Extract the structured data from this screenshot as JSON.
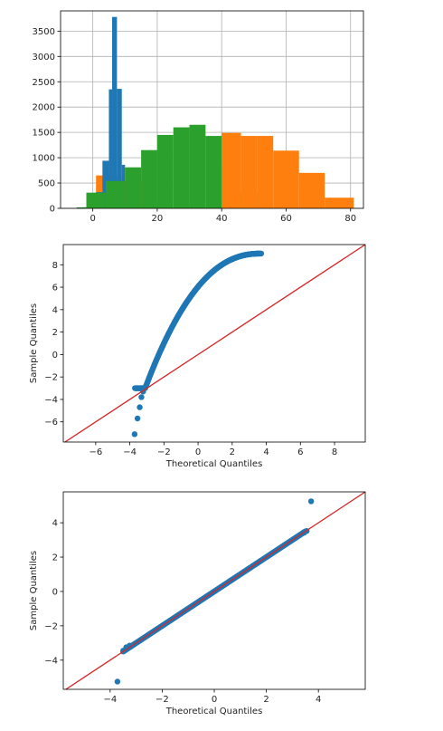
{
  "chart_data": [
    {
      "type": "bar",
      "title": "",
      "xlabel": "",
      "ylabel": "",
      "xlim": [
        -10,
        84
      ],
      "ylim": [
        0,
        3900
      ],
      "grid": true,
      "xticks": [
        0,
        20,
        40,
        60,
        80
      ],
      "yticks": [
        0,
        500,
        1000,
        1500,
        2000,
        2500,
        3000,
        3500
      ],
      "series": [
        {
          "color": "#ff7f0e",
          "bins": [
            {
              "x0": 0,
              "x1": 1,
              "y": 0
            },
            {
              "x0": 1,
              "x2": 0,
              "x1": 9,
              "y": 650
            },
            {
              "x0": 9,
              "x1": 17,
              "y": 550
            },
            {
              "x0": 17,
              "x1": 25,
              "y": 0
            }
          ]
        },
        {
          "color": "#1f77b4",
          "bins": [
            {
              "x0": -3,
              "x1": -1,
              "y": 20
            },
            {
              "x0": -1,
              "x1": 1,
              "y": 50
            },
            {
              "x0": 1,
              "x1": 3,
              "y": 320
            },
            {
              "x0": 3,
              "x1": 5,
              "y": 940
            },
            {
              "x0": 5,
              "x1": 6,
              "y": 2350
            },
            {
              "x0": 6,
              "x1": 7.5,
              "y": 3780
            },
            {
              "x0": 7.5,
              "x1": 9,
              "y": 2360
            },
            {
              "x0": 9,
              "x1": 10,
              "y": 860
            }
          ]
        },
        {
          "color": "#2ca02c",
          "bins": [
            {
              "x0": -5,
              "x1": -2,
              "y": 20
            },
            {
              "x0": -2,
              "x1": 4,
              "y": 310
            },
            {
              "x0": 4,
              "x1": 10,
              "y": 540
            },
            {
              "x0": 10,
              "x1": 15,
              "y": 810
            },
            {
              "x0": 15,
              "x1": 20,
              "y": 1150
            },
            {
              "x0": 20,
              "x1": 25,
              "y": 1450
            },
            {
              "x0": 25,
              "x1": 30,
              "y": 1600
            },
            {
              "x0": 30,
              "x1": 35,
              "y": 1650
            },
            {
              "x0": 35,
              "x1": 40,
              "y": 1430
            },
            {
              "x0": 40,
              "x1": 45,
              "y": 880
            },
            {
              "x0": 45,
              "x1": 51,
              "y": 300
            }
          ]
        },
        {
          "color": "#ff7f0e",
          "bins": [
            {
              "x0": 40,
              "x1": 46,
              "y": 1490
            },
            {
              "x0": 46,
              "x1": 51,
              "y": 1430
            },
            {
              "x0": 51,
              "x1": 56,
              "y": 1430
            },
            {
              "x0": 56,
              "x1": 64,
              "y": 1140
            },
            {
              "x0": 64,
              "x1": 72,
              "y": 700
            },
            {
              "x0": 72,
              "x1": 81,
              "y": 210
            }
          ]
        }
      ]
    },
    {
      "type": "scatter",
      "title": "",
      "xlabel": "Theoretical Quantiles",
      "ylabel": "Sample Quantiles",
      "xlim": [
        -7.9,
        9.8
      ],
      "ylim": [
        -7.8,
        9.8
      ],
      "xticks": [
        -6,
        -4,
        -2,
        0,
        2,
        4,
        6,
        8
      ],
      "yticks": [
        -6,
        -4,
        -2,
        0,
        2,
        4,
        6,
        8
      ],
      "reference_line": {
        "slope": 1,
        "intercept": 0,
        "color": "#d62728"
      },
      "marker_color": "#1f77b4",
      "curve": {
        "kind": "skewed-s",
        "x_min": -3.7,
        "x_max": 3.7
      },
      "points": [
        [
          -3.72,
          -7.1
        ],
        [
          -3.55,
          -5.7
        ],
        [
          -3.42,
          -4.7
        ],
        [
          -3.32,
          -3.8
        ],
        [
          -3.22,
          -3.3
        ],
        [
          -3.12,
          -3.0
        ]
      ]
    },
    {
      "type": "scatter",
      "title": "",
      "xlabel": "Theoretical Quantiles",
      "ylabel": "Sample Quantiles",
      "xlim": [
        -5.8,
        5.8
      ],
      "ylim": [
        -5.7,
        5.8
      ],
      "xticks": [
        -4,
        -2,
        0,
        2,
        4
      ],
      "yticks": [
        -4,
        -2,
        0,
        2,
        4
      ],
      "reference_line": {
        "slope": 1,
        "intercept": 0,
        "color": "#d62728"
      },
      "marker_color": "#1f77b4",
      "curve": {
        "kind": "linear",
        "x_min": -3.5,
        "x_max": 3.5
      },
      "points": [
        [
          -3.72,
          -5.25
        ],
        [
          -3.5,
          -3.45
        ],
        [
          -3.38,
          -3.25
        ],
        [
          -3.25,
          -3.15
        ],
        [
          -3.1,
          -3.1
        ],
        [
          3.45,
          3.42
        ],
        [
          3.55,
          3.52
        ],
        [
          3.72,
          5.25
        ]
      ]
    }
  ]
}
